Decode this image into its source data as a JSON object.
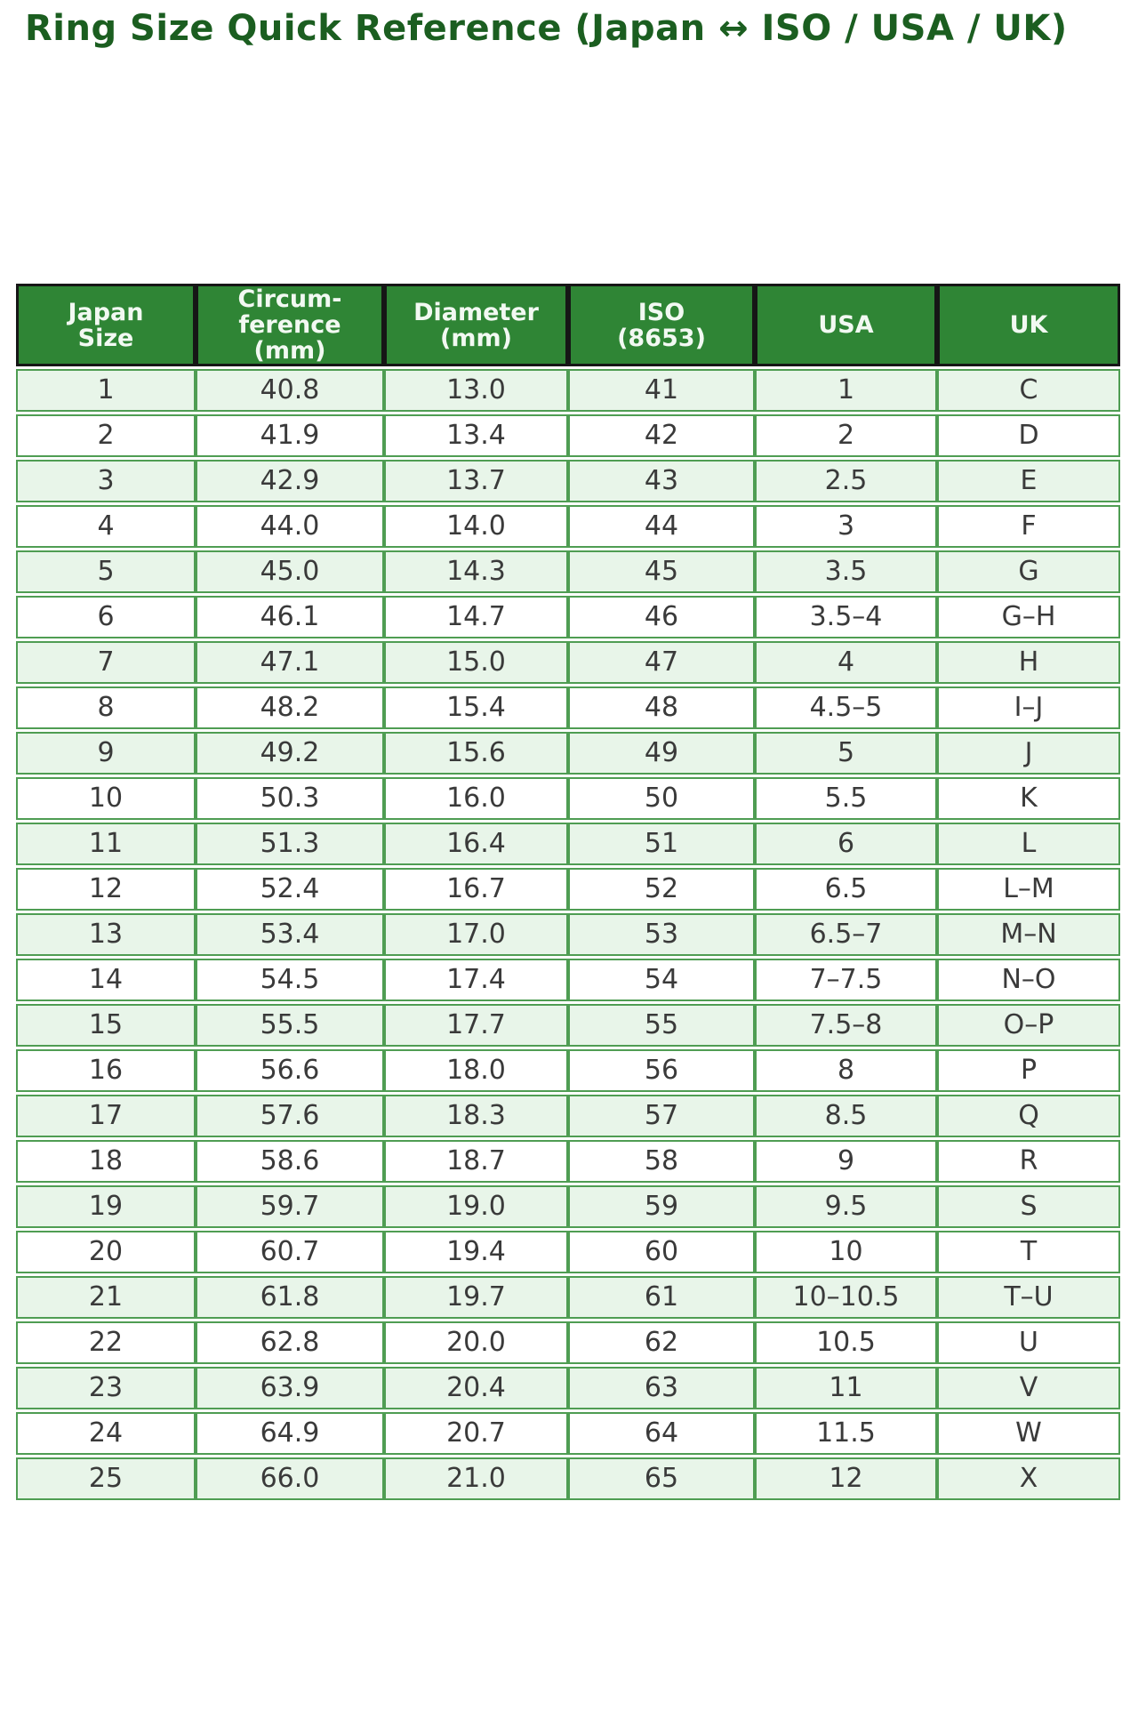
{
  "page": {
    "title": "Ring Size Quick Reference (Japan ↔ ISO / USA / UK)"
  },
  "colors": {
    "title_text": "#1b5e20",
    "header_bg": "#2f8535",
    "header_text": "#f2f9f2",
    "header_border": "#161616",
    "cell_border": "#4f9d53",
    "row_alt_bg": "#e8f5e9",
    "row_bg": "#ffffff",
    "body_text": "#3a3a3a",
    "page_bg": "#ffffff"
  },
  "chart_data": {
    "type": "table",
    "title": "Ring Size Quick Reference (Japan ↔ ISO / USA / UK)",
    "layout_hints": {
      "striping": "odd data rows light green, even rows white",
      "header_style": "dark green background, white bold text, black border",
      "all_cells_centered": true
    },
    "column_ids": [
      "japan-size",
      "circumference-mm",
      "diameter-mm",
      "iso-8653",
      "usa",
      "uk"
    ],
    "columns": [
      "Japan Size",
      "Circumference (mm)",
      "Diameter (mm)",
      "ISO (8653)",
      "USA",
      "UK"
    ],
    "column_headers_display": [
      "Japan\nSize",
      "Circum-\nference\n(mm)",
      "Diameter\n(mm)",
      "ISO\n(8653)",
      "USA",
      "UK"
    ],
    "rows": [
      [
        "1",
        "40.8",
        "13.0",
        "41",
        "1",
        "C"
      ],
      [
        "2",
        "41.9",
        "13.4",
        "42",
        "2",
        "D"
      ],
      [
        "3",
        "42.9",
        "13.7",
        "43",
        "2.5",
        "E"
      ],
      [
        "4",
        "44.0",
        "14.0",
        "44",
        "3",
        "F"
      ],
      [
        "5",
        "45.0",
        "14.3",
        "45",
        "3.5",
        "G"
      ],
      [
        "6",
        "46.1",
        "14.7",
        "46",
        "3.5–4",
        "G–H"
      ],
      [
        "7",
        "47.1",
        "15.0",
        "47",
        "4",
        "H"
      ],
      [
        "8",
        "48.2",
        "15.4",
        "48",
        "4.5–5",
        "I–J"
      ],
      [
        "9",
        "49.2",
        "15.6",
        "49",
        "5",
        "J"
      ],
      [
        "10",
        "50.3",
        "16.0",
        "50",
        "5.5",
        "K"
      ],
      [
        "11",
        "51.3",
        "16.4",
        "51",
        "6",
        "L"
      ],
      [
        "12",
        "52.4",
        "16.7",
        "52",
        "6.5",
        "L–M"
      ],
      [
        "13",
        "53.4",
        "17.0",
        "53",
        "6.5–7",
        "M–N"
      ],
      [
        "14",
        "54.5",
        "17.4",
        "54",
        "7–7.5",
        "N–O"
      ],
      [
        "15",
        "55.5",
        "17.7",
        "55",
        "7.5–8",
        "O–P"
      ],
      [
        "16",
        "56.6",
        "18.0",
        "56",
        "8",
        "P"
      ],
      [
        "17",
        "57.6",
        "18.3",
        "57",
        "8.5",
        "Q"
      ],
      [
        "18",
        "58.6",
        "18.7",
        "58",
        "9",
        "R"
      ],
      [
        "19",
        "59.7",
        "19.0",
        "59",
        "9.5",
        "S"
      ],
      [
        "20",
        "60.7",
        "19.4",
        "60",
        "10",
        "T"
      ],
      [
        "21",
        "61.8",
        "19.7",
        "61",
        "10–10.5",
        "T–U"
      ],
      [
        "22",
        "62.8",
        "20.0",
        "62",
        "10.5",
        "U"
      ],
      [
        "23",
        "63.9",
        "20.4",
        "63",
        "11",
        "V"
      ],
      [
        "24",
        "64.9",
        "20.7",
        "64",
        "11.5",
        "W"
      ],
      [
        "25",
        "66.0",
        "21.0",
        "65",
        "12",
        "X"
      ]
    ]
  }
}
